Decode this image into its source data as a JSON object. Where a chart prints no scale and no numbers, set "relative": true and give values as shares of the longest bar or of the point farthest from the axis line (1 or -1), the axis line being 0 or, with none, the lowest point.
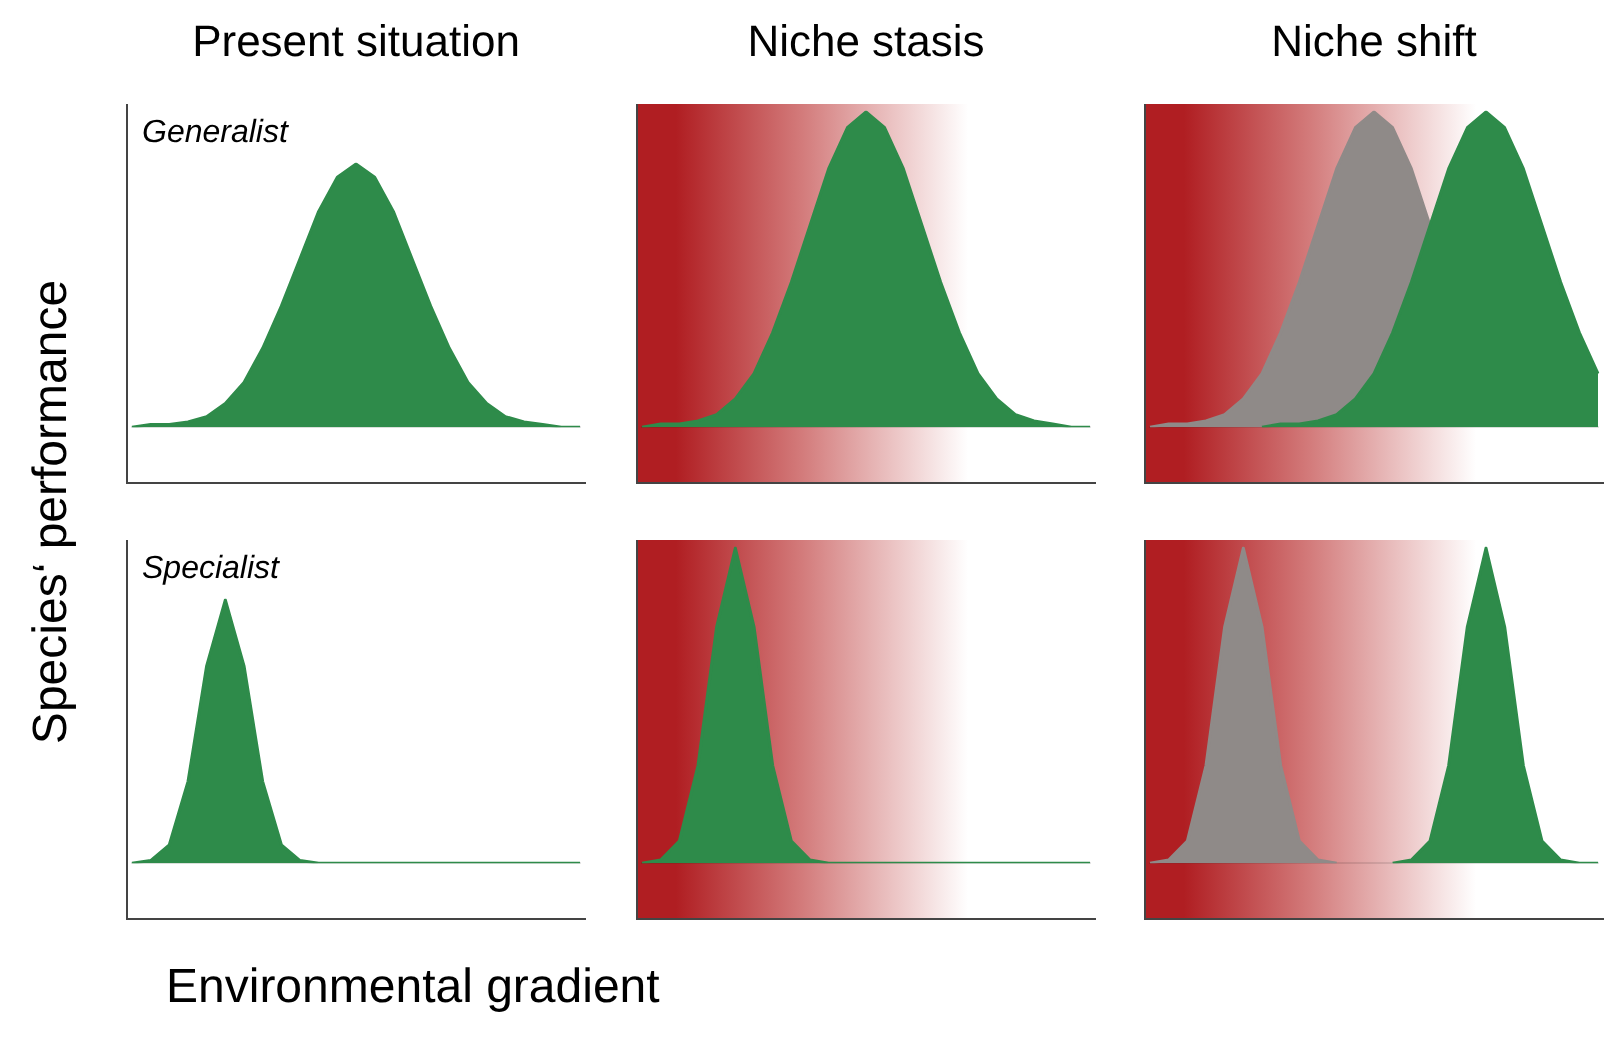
{
  "chart_data": [
    {
      "type": "area",
      "title": "Present situation",
      "ylabel": "Species‘ performance",
      "annotations": [
        "Generalist"
      ],
      "relative": true,
      "categories": [
        null,
        null,
        null,
        null,
        null,
        null,
        null,
        null,
        null,
        null,
        null,
        null,
        null,
        null,
        null,
        null,
        null,
        null,
        null,
        null,
        null,
        null,
        null,
        null,
        null
      ],
      "series": [
        {
          "color": "#2e8b4a",
          "values": [
            0,
            0.01,
            0.01,
            0.02,
            0.04,
            0.09,
            0.17,
            0.3,
            0.46,
            0.64,
            0.82,
            0.95,
            1,
            0.95,
            0.82,
            0.64,
            0.46,
            0.3,
            0.17,
            0.09,
            0.04,
            0.02,
            0.01,
            0,
            0
          ]
        }
      ]
    },
    {
      "type": "area",
      "title": "Niche stasis",
      "relative": true,
      "categories": [
        null,
        null,
        null,
        null,
        null,
        null,
        null,
        null,
        null,
        null,
        null,
        null,
        null,
        null,
        null,
        null,
        null,
        null,
        null,
        null,
        null,
        null,
        null,
        null,
        null
      ],
      "series": [
        {
          "color": "#2e8b4a",
          "values": [
            0,
            0.01,
            0.01,
            0.02,
            0.04,
            0.09,
            0.17,
            0.3,
            0.46,
            0.64,
            0.82,
            0.95,
            1,
            0.95,
            0.82,
            0.64,
            0.46,
            0.3,
            0.17,
            0.09,
            0.04,
            0.02,
            0.01,
            0,
            0
          ]
        }
      ]
    },
    {
      "type": "area",
      "title": "Niche shift",
      "relative": true,
      "categories": [
        null,
        null,
        null,
        null,
        null,
        null,
        null,
        null,
        null,
        null,
        null,
        null,
        null,
        null,
        null,
        null,
        null,
        null,
        null,
        null,
        null,
        null,
        null,
        null,
        null
      ],
      "series": [
        {
          "color": "#8f8a88",
          "values": [
            0,
            0.01,
            0.01,
            0.02,
            0.04,
            0.09,
            0.17,
            0.3,
            0.46,
            0.64,
            0.82,
            0.95,
            1,
            0.95,
            0.82,
            0.64,
            null,
            null,
            null,
            null,
            null,
            null,
            null,
            null,
            null
          ]
        },
        {
          "color": "#2e8b4a",
          "values": [
            null,
            null,
            null,
            null,
            null,
            null,
            0,
            0.01,
            0.01,
            0.02,
            0.04,
            0.09,
            0.17,
            0.3,
            0.46,
            0.64,
            0.82,
            0.95,
            1,
            0.95,
            0.82,
            0.64,
            0.46,
            0.3,
            0.17
          ]
        }
      ]
    },
    {
      "type": "area",
      "xlabel": "Environmental gradient",
      "annotations": [
        "Specialist"
      ],
      "relative": true,
      "categories": [
        null,
        null,
        null,
        null,
        null,
        null,
        null,
        null,
        null,
        null,
        null,
        null,
        null,
        null,
        null,
        null,
        null,
        null,
        null,
        null,
        null,
        null,
        null,
        null,
        null
      ],
      "series": [
        {
          "color": "#2e8b4a",
          "values": [
            0,
            0.01,
            0.07,
            0.31,
            0.75,
            1,
            0.75,
            0.31,
            0.07,
            0.01,
            0,
            0,
            0,
            0,
            0,
            0,
            0,
            0,
            0,
            0,
            0,
            0,
            0,
            0,
            0
          ]
        }
      ]
    },
    {
      "type": "area",
      "relative": true,
      "categories": [
        null,
        null,
        null,
        null,
        null,
        null,
        null,
        null,
        null,
        null,
        null,
        null,
        null,
        null,
        null,
        null,
        null,
        null,
        null,
        null,
        null,
        null,
        null,
        null,
        null
      ],
      "series": [
        {
          "color": "#2e8b4a",
          "values": [
            0,
            0.01,
            0.07,
            0.31,
            0.75,
            1,
            0.75,
            0.31,
            0.07,
            0.01,
            0,
            0,
            0,
            0,
            0,
            0,
            0,
            0,
            0,
            0,
            0,
            0,
            0,
            0,
            0
          ]
        }
      ]
    },
    {
      "type": "area",
      "relative": true,
      "categories": [
        null,
        null,
        null,
        null,
        null,
        null,
        null,
        null,
        null,
        null,
        null,
        null,
        null,
        null,
        null,
        null,
        null,
        null,
        null,
        null,
        null,
        null,
        null,
        null,
        null
      ],
      "series": [
        {
          "color": "#8f8a88",
          "values": [
            0,
            0.01,
            0.07,
            0.31,
            0.75,
            1,
            0.75,
            0.31,
            0.07,
            0.01,
            0,
            null,
            null,
            null,
            null,
            null,
            null,
            null,
            null,
            null,
            null,
            null,
            null,
            null,
            null
          ]
        },
        {
          "color": "#2e8b4a",
          "values": [
            null,
            null,
            null,
            null,
            null,
            null,
            null,
            null,
            null,
            null,
            null,
            null,
            null,
            0,
            0.01,
            0.07,
            0.31,
            0.75,
            1,
            0.75,
            0.31,
            0.07,
            0.01,
            0,
            0
          ]
        }
      ]
    }
  ]
}
